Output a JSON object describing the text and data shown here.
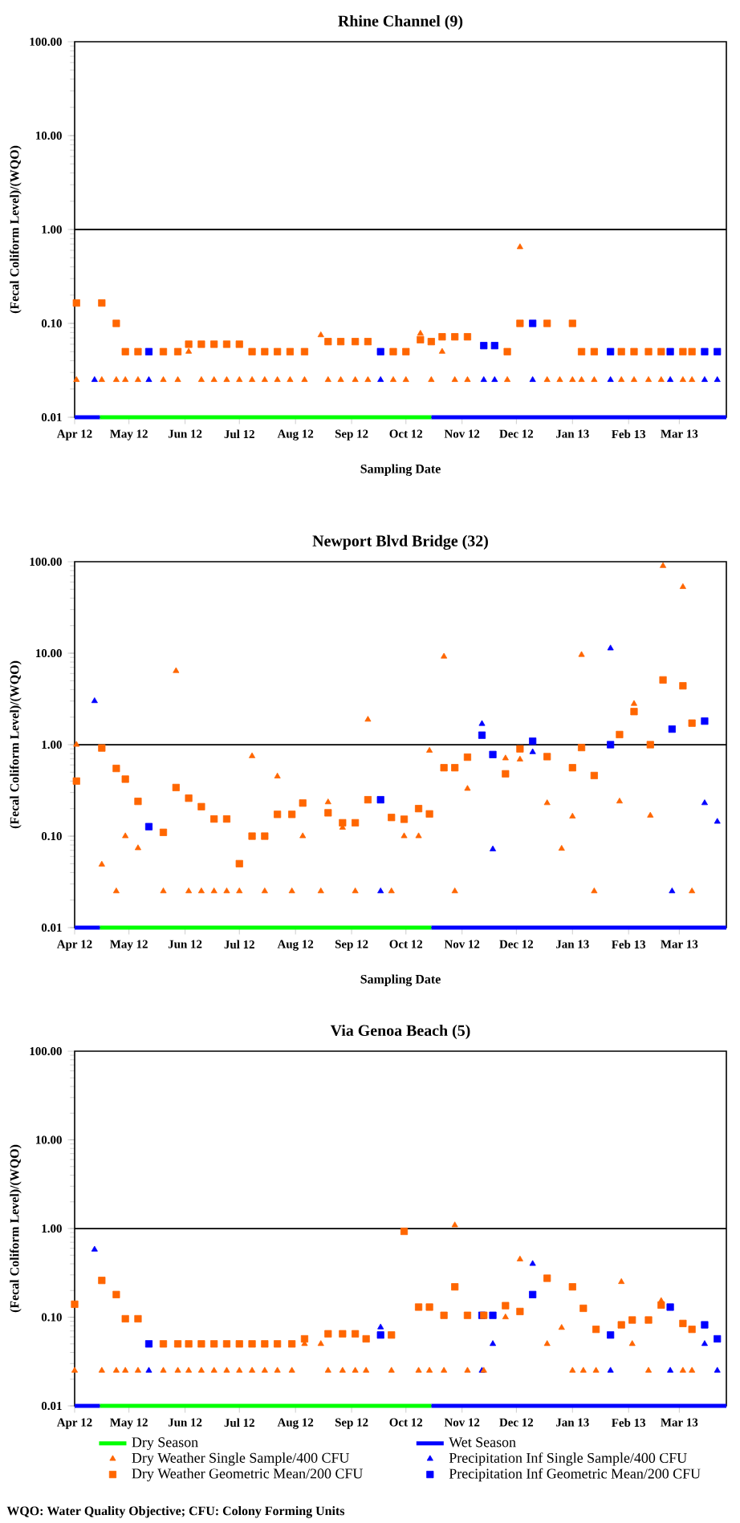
{
  "chart_data": [
    {
      "type": "scatter",
      "title": "Rhine Channel (9)",
      "xlabel": "Sampling Date",
      "ylabel": "(Fecal Coliform Level)/(WQO)",
      "log": "y",
      "xlim": [
        "2012-04-01",
        "2013-03-27"
      ],
      "ylim": [
        0.01,
        100
      ],
      "xticks": [
        {
          "value": "2012-04-01",
          "label": "Apr 12"
        },
        {
          "value": "2012-05-01",
          "label": "May 12"
        },
        {
          "value": "2012-06-01",
          "label": "Jun 12"
        },
        {
          "value": "2012-07-01",
          "label": "Jul 12"
        },
        {
          "value": "2012-08-01",
          "label": "Aug 12"
        },
        {
          "value": "2012-09-01",
          "label": "Sep 12"
        },
        {
          "value": "2012-10-01",
          "label": "Oct 12"
        },
        {
          "value": "2012-11-01",
          "label": "Nov 12"
        },
        {
          "value": "2012-12-01",
          "label": "Dec 12"
        },
        {
          "value": "2013-01-01",
          "label": "Jan 13"
        },
        {
          "value": "2013-02-01",
          "label": "Feb 13"
        },
        {
          "value": "2013-03-01",
          "label": "Mar 13"
        }
      ],
      "yticks": [
        {
          "value": 0.01,
          "label": "0.01"
        },
        {
          "value": 0.1,
          "label": "0.10"
        },
        {
          "value": 1,
          "label": "1.00"
        },
        {
          "value": 10,
          "label": "10.00"
        },
        {
          "value": 100,
          "label": "100.00"
        }
      ],
      "ref_lines": [
        {
          "axis": "y",
          "value": 1,
          "color": "#000000"
        }
      ],
      "series": [
        {
          "type": "line",
          "marker": "none",
          "color": "#00ff00",
          "x": [
            "2012-04-15",
            "2012-10-15"
          ],
          "values": [
            0.01,
            0.01
          ]
        },
        {
          "type": "line",
          "marker": "none",
          "color": "#0000ff",
          "x": [
            "2012-04-01",
            "2012-04-15"
          ],
          "values": [
            0.01,
            0.01
          ]
        },
        {
          "type": "line",
          "marker": "none",
          "color": "#0000ff",
          "x": [
            "2012-10-15",
            "2013-03-27"
          ],
          "values": [
            0.01,
            0.01
          ]
        },
        {
          "color": "#ff6600",
          "marker": "triangle",
          "x": [
            "2012-04-02",
            "2012-04-16",
            "2012-04-24",
            "2012-04-29",
            "2012-05-06",
            "2012-05-20",
            "2012-05-28",
            "2012-06-03",
            "2012-06-10",
            "2012-06-17",
            "2012-06-24",
            "2012-07-01",
            "2012-07-08",
            "2012-07-15",
            "2012-07-22",
            "2012-07-29",
            "2012-08-06",
            "2012-08-15",
            "2012-08-19",
            "2012-08-26",
            "2012-09-03",
            "2012-09-10",
            "2012-09-24",
            "2012-10-01",
            "2012-10-09",
            "2012-10-15",
            "2012-10-21",
            "2012-10-28",
            "2012-11-04",
            "2012-11-26",
            "2012-12-03",
            "2012-12-18",
            "2012-12-25",
            "2013-01-01",
            "2013-01-06",
            "2013-01-13",
            "2013-01-28",
            "2013-02-04",
            "2013-02-12",
            "2013-02-19",
            "2013-03-03",
            "2013-03-08"
          ],
          "values": [
            0.025,
            0.025,
            0.025,
            0.025,
            0.025,
            0.025,
            0.025,
            0.05,
            0.025,
            0.025,
            0.025,
            0.025,
            0.025,
            0.025,
            0.025,
            0.025,
            0.025,
            0.075,
            0.025,
            0.025,
            0.025,
            0.025,
            0.025,
            0.025,
            0.078,
            0.025,
            0.05,
            0.025,
            0.025,
            0.025,
            0.65,
            0.025,
            0.025,
            0.025,
            0.025,
            0.025,
            0.025,
            0.025,
            0.025,
            0.025,
            0.025,
            0.025
          ]
        },
        {
          "color": "#0000ff",
          "marker": "triangle",
          "x": [
            "2012-04-12",
            "2012-05-12",
            "2012-09-17",
            "2012-11-13",
            "2012-11-19",
            "2012-12-10",
            "2013-01-22",
            "2013-02-24",
            "2013-03-15",
            "2013-03-22"
          ],
          "values": [
            0.025,
            0.025,
            0.025,
            0.025,
            0.025,
            0.025,
            0.025,
            0.025,
            0.025,
            0.025
          ]
        },
        {
          "color": "#ff6600",
          "marker": "square",
          "x": [
            "2012-04-02",
            "2012-04-16",
            "2012-04-24",
            "2012-04-29",
            "2012-05-06",
            "2012-05-20",
            "2012-05-28",
            "2012-06-03",
            "2012-06-10",
            "2012-06-17",
            "2012-06-24",
            "2012-07-01",
            "2012-07-08",
            "2012-07-15",
            "2012-07-22",
            "2012-07-29",
            "2012-08-06",
            "2012-08-19",
            "2012-08-26",
            "2012-09-03",
            "2012-09-10",
            "2012-09-24",
            "2012-10-01",
            "2012-10-09",
            "2012-10-15",
            "2012-10-21",
            "2012-10-28",
            "2012-11-04",
            "2012-11-26",
            "2012-12-03",
            "2012-12-18",
            "2013-01-01",
            "2013-01-06",
            "2013-01-13",
            "2013-01-28",
            "2013-02-04",
            "2013-02-12",
            "2013-02-19",
            "2013-03-03",
            "2013-03-08"
          ],
          "values": [
            0.165,
            0.165,
            0.1,
            0.05,
            0.05,
            0.05,
            0.05,
            0.06,
            0.06,
            0.06,
            0.06,
            0.06,
            0.05,
            0.05,
            0.05,
            0.05,
            0.05,
            0.064,
            0.064,
            0.064,
            0.064,
            0.05,
            0.05,
            0.067,
            0.064,
            0.072,
            0.072,
            0.072,
            0.05,
            0.1,
            0.1,
            0.1,
            0.05,
            0.05,
            0.05,
            0.05,
            0.05,
            0.05,
            0.05,
            0.05
          ]
        },
        {
          "color": "#0000ff",
          "marker": "square",
          "x": [
            "2012-05-12",
            "2012-09-17",
            "2012-11-13",
            "2012-11-19",
            "2012-12-10",
            "2013-01-22",
            "2013-02-24",
            "2013-03-15",
            "2013-03-22"
          ],
          "values": [
            0.05,
            0.05,
            0.058,
            0.058,
            0.1,
            0.05,
            0.05,
            0.05,
            0.05
          ]
        }
      ]
    },
    {
      "type": "scatter",
      "title": "Newport Blvd Bridge (32)",
      "xlabel": "Sampling Date",
      "ylabel": "(Fecal Coliform Level)/(WQO)",
      "log": "y",
      "xlim": [
        "2012-04-01",
        "2013-03-27"
      ],
      "ylim": [
        0.01,
        100
      ],
      "xticks": [
        {
          "value": "2012-04-01",
          "label": "Apr 12"
        },
        {
          "value": "2012-05-01",
          "label": "May 12"
        },
        {
          "value": "2012-06-01",
          "label": "Jun 12"
        },
        {
          "value": "2012-07-01",
          "label": "Jul 12"
        },
        {
          "value": "2012-08-01",
          "label": "Aug 12"
        },
        {
          "value": "2012-09-01",
          "label": "Sep 12"
        },
        {
          "value": "2012-10-01",
          "label": "Oct 12"
        },
        {
          "value": "2012-11-01",
          "label": "Nov 12"
        },
        {
          "value": "2012-12-01",
          "label": "Dec 12"
        },
        {
          "value": "2013-01-01",
          "label": "Jan 13"
        },
        {
          "value": "2013-02-01",
          "label": "Feb 13"
        },
        {
          "value": "2013-03-01",
          "label": "Mar 13"
        }
      ],
      "yticks": [
        {
          "value": 0.01,
          "label": "0.01"
        },
        {
          "value": 0.1,
          "label": "0.10"
        },
        {
          "value": 1,
          "label": "1.00"
        },
        {
          "value": 10,
          "label": "10.00"
        },
        {
          "value": 100,
          "label": "100.00"
        }
      ],
      "ref_lines": [
        {
          "axis": "y",
          "value": 1,
          "color": "#000000"
        }
      ],
      "series": [
        {
          "type": "line",
          "marker": "none",
          "color": "#00ff00",
          "x": [
            "2012-04-15",
            "2012-10-15"
          ],
          "values": [
            0.01,
            0.01
          ]
        },
        {
          "type": "line",
          "marker": "none",
          "color": "#0000ff",
          "x": [
            "2012-04-01",
            "2012-04-15"
          ],
          "values": [
            0.01,
            0.01
          ]
        },
        {
          "type": "line",
          "marker": "none",
          "color": "#0000ff",
          "x": [
            "2012-10-15",
            "2013-03-27"
          ],
          "values": [
            0.01,
            0.01
          ]
        },
        {
          "color": "#ff6600",
          "marker": "triangle",
          "x": [
            "2012-04-02",
            "2012-04-16",
            "2012-04-24",
            "2012-04-29",
            "2012-05-06",
            "2012-05-20",
            "2012-05-27",
            "2012-06-03",
            "2012-06-10",
            "2012-06-17",
            "2012-06-24",
            "2012-07-01",
            "2012-07-08",
            "2012-07-15",
            "2012-07-22",
            "2012-07-30",
            "2012-08-05",
            "2012-08-15",
            "2012-08-19",
            "2012-08-27",
            "2012-09-03",
            "2012-09-10",
            "2012-09-23",
            "2012-09-30",
            "2012-10-08",
            "2012-10-14",
            "2012-10-22",
            "2012-10-28",
            "2012-11-04",
            "2012-11-25",
            "2012-12-03",
            "2012-12-18",
            "2012-12-26",
            "2013-01-01",
            "2013-01-06",
            "2013-01-13",
            "2013-01-27",
            "2013-02-04",
            "2013-02-13",
            "2013-02-20",
            "2013-03-03",
            "2013-03-08"
          ],
          "values": [
            1.0,
            0.049,
            0.025,
            0.1,
            0.074,
            0.025,
            6.4,
            0.025,
            0.025,
            0.025,
            0.025,
            0.025,
            0.75,
            0.025,
            0.45,
            0.025,
            0.1,
            0.025,
            0.235,
            0.124,
            0.025,
            1.88,
            0.025,
            0.1,
            0.1,
            0.86,
            9.2,
            0.025,
            0.33,
            0.71,
            0.69,
            0.23,
            0.073,
            0.164,
            9.6,
            0.025,
            0.24,
            2.8,
            0.168,
            90,
            53,
            0.025
          ]
        },
        {
          "color": "#0000ff",
          "marker": "triangle",
          "x": [
            "2012-04-12",
            "2012-05-12",
            "2012-09-17",
            "2012-11-12",
            "2012-11-18",
            "2012-12-10",
            "2013-01-22",
            "2013-02-25",
            "2013-03-15",
            "2013-03-22"
          ],
          "values": [
            3.0,
            0.127,
            0.025,
            1.69,
            0.072,
            0.83,
            11.3,
            0.025,
            0.23,
            0.144
          ]
        },
        {
          "color": "#ff6600",
          "marker": "square",
          "x": [
            "2012-04-02",
            "2012-04-16",
            "2012-04-24",
            "2012-04-29",
            "2012-05-06",
            "2012-05-20",
            "2012-05-27",
            "2012-06-03",
            "2012-06-10",
            "2012-06-17",
            "2012-06-24",
            "2012-07-01",
            "2012-07-08",
            "2012-07-15",
            "2012-07-22",
            "2012-07-30",
            "2012-08-05",
            "2012-08-19",
            "2012-08-27",
            "2012-09-03",
            "2012-09-10",
            "2012-09-23",
            "2012-09-30",
            "2012-10-08",
            "2012-10-14",
            "2012-10-22",
            "2012-10-28",
            "2012-11-04",
            "2012-11-25",
            "2012-12-03",
            "2012-12-18",
            "2013-01-01",
            "2013-01-06",
            "2013-01-13",
            "2013-01-27",
            "2013-02-04",
            "2013-02-13",
            "2013-02-20",
            "2013-03-03",
            "2013-03-08"
          ],
          "values": [
            0.4,
            0.92,
            0.55,
            0.42,
            0.24,
            0.11,
            0.34,
            0.26,
            0.21,
            0.154,
            0.154,
            0.05,
            0.1,
            0.1,
            0.173,
            0.173,
            0.23,
            0.18,
            0.14,
            0.14,
            0.25,
            0.16,
            0.153,
            0.2,
            0.175,
            0.56,
            0.56,
            0.73,
            0.48,
            0.9,
            0.74,
            0.56,
            0.93,
            0.46,
            1.29,
            2.3,
            1.0,
            5.1,
            4.4,
            1.72
          ]
        },
        {
          "color": "#0000ff",
          "marker": "square",
          "x": [
            "2012-05-12",
            "2012-09-17",
            "2012-11-12",
            "2012-11-18",
            "2012-12-10",
            "2013-01-22",
            "2013-02-25",
            "2013-03-15"
          ],
          "values": [
            0.127,
            0.25,
            1.27,
            0.78,
            1.09,
            1.0,
            1.48,
            1.81
          ]
        }
      ]
    },
    {
      "type": "scatter",
      "title": "Via Genoa Beach (5)",
      "ylabel": "(Fecal Coliform Level)/(WQO)",
      "log": "y",
      "legend": "bottom",
      "xlim": [
        "2012-04-01",
        "2013-03-27"
      ],
      "ylim": [
        0.01,
        100
      ],
      "xticks": [
        {
          "value": "2012-04-01",
          "label": "Apr 12"
        },
        {
          "value": "2012-05-01",
          "label": "May 12"
        },
        {
          "value": "2012-06-01",
          "label": "Jun 12"
        },
        {
          "value": "2012-07-01",
          "label": "Jul 12"
        },
        {
          "value": "2012-08-01",
          "label": "Aug 12"
        },
        {
          "value": "2012-09-01",
          "label": "Sep 12"
        },
        {
          "value": "2012-10-01",
          "label": "Oct 12"
        },
        {
          "value": "2012-11-01",
          "label": "Nov 12"
        },
        {
          "value": "2012-12-01",
          "label": "Dec 12"
        },
        {
          "value": "2013-01-01",
          "label": "Jan 13"
        },
        {
          "value": "2013-02-01",
          "label": "Feb 13"
        },
        {
          "value": "2013-03-01",
          "label": "Mar 13"
        }
      ],
      "yticks": [
        {
          "value": 0.01,
          "label": "0.01"
        },
        {
          "value": 0.1,
          "label": "0.10"
        },
        {
          "value": 1,
          "label": "1.00"
        },
        {
          "value": 10,
          "label": "10.00"
        },
        {
          "value": 100,
          "label": "100.00"
        }
      ],
      "ref_lines": [
        {
          "axis": "y",
          "value": 1,
          "color": "#000000"
        }
      ],
      "series": [
        {
          "name": "Dry Season",
          "type": "line",
          "marker": "none",
          "color": "#00ff00",
          "x": [
            "2012-04-15",
            "2012-10-15"
          ],
          "values": [
            0.01,
            0.01
          ]
        },
        {
          "name": "Wet Season",
          "type": "line",
          "marker": "none",
          "color": "#0000ff",
          "x": [
            "2012-04-01",
            "2012-04-15"
          ],
          "values": [
            0.01,
            0.01
          ]
        },
        {
          "type": "line",
          "marker": "none",
          "color": "#0000ff",
          "x": [
            "2012-10-15",
            "2013-03-27"
          ],
          "values": [
            0.01,
            0.01
          ]
        },
        {
          "name": "Dry Weather Single Sample/400 CFU",
          "color": "#ff6600",
          "marker": "triangle",
          "x": [
            "2012-04-01",
            "2012-04-16",
            "2012-04-24",
            "2012-04-29",
            "2012-05-06",
            "2012-05-20",
            "2012-05-28",
            "2012-06-03",
            "2012-06-10",
            "2012-06-17",
            "2012-06-24",
            "2012-07-01",
            "2012-07-08",
            "2012-07-15",
            "2012-07-22",
            "2012-07-30",
            "2012-08-06",
            "2012-08-15",
            "2012-08-19",
            "2012-08-27",
            "2012-09-03",
            "2012-09-09",
            "2012-09-23",
            "2012-10-08",
            "2012-10-14",
            "2012-10-22",
            "2012-10-28",
            "2012-11-04",
            "2012-11-13",
            "2012-11-25",
            "2012-12-03",
            "2012-12-18",
            "2012-12-26",
            "2013-01-01",
            "2013-01-07",
            "2013-01-14",
            "2013-01-28",
            "2013-02-03",
            "2013-02-12",
            "2013-02-19",
            "2013-03-03",
            "2013-03-08"
          ],
          "values": [
            0.025,
            0.025,
            0.025,
            0.025,
            0.025,
            0.025,
            0.025,
            0.025,
            0.025,
            0.025,
            0.025,
            0.025,
            0.025,
            0.025,
            0.025,
            0.025,
            0.05,
            0.05,
            0.025,
            0.025,
            0.025,
            0.025,
            0.025,
            0.025,
            0.025,
            0.025,
            1.09,
            0.025,
            0.025,
            0.1,
            0.45,
            0.05,
            0.076,
            0.025,
            0.025,
            0.025,
            0.25,
            0.05,
            0.025,
            0.153,
            0.025,
            0.025
          ]
        },
        {
          "name": "Precipitation Inf Single Sample/400 CFU",
          "color": "#0000ff",
          "marker": "triangle",
          "x": [
            "2012-04-12",
            "2012-05-12",
            "2012-09-17",
            "2012-11-12",
            "2012-11-18",
            "2012-12-10",
            "2013-01-22",
            "2013-02-24",
            "2013-03-15",
            "2013-03-22"
          ],
          "values": [
            0.58,
            0.025,
            0.077,
            0.025,
            0.05,
            0.4,
            0.025,
            0.025,
            0.05,
            0.025
          ]
        },
        {
          "name": "Dry Weather Geometric Mean/200 CFU",
          "color": "#ff6600",
          "marker": "square",
          "x": [
            "2012-04-01",
            "2012-04-16",
            "2012-04-24",
            "2012-04-29",
            "2012-05-06",
            "2012-05-20",
            "2012-05-28",
            "2012-06-03",
            "2012-06-10",
            "2012-06-17",
            "2012-06-24",
            "2012-07-01",
            "2012-07-08",
            "2012-07-15",
            "2012-07-22",
            "2012-07-30",
            "2012-08-06",
            "2012-08-19",
            "2012-08-27",
            "2012-09-03",
            "2012-09-09",
            "2012-09-23",
            "2012-09-30",
            "2012-10-08",
            "2012-10-14",
            "2012-10-22",
            "2012-10-28",
            "2012-11-04",
            "2012-11-13",
            "2012-11-25",
            "2012-12-03",
            "2012-12-18",
            "2013-01-01",
            "2013-01-07",
            "2013-01-14",
            "2013-01-28",
            "2013-02-03",
            "2013-02-12",
            "2013-02-19",
            "2013-03-03",
            "2013-03-08"
          ],
          "values": [
            0.14,
            0.26,
            0.18,
            0.096,
            0.096,
            0.05,
            0.05,
            0.05,
            0.05,
            0.05,
            0.05,
            0.05,
            0.05,
            0.05,
            0.05,
            0.05,
            0.057,
            0.065,
            0.065,
            0.065,
            0.057,
            0.063,
            0.93,
            0.13,
            0.13,
            0.105,
            0.22,
            0.105,
            0.105,
            0.135,
            0.116,
            0.275,
            0.22,
            0.126,
            0.073,
            0.082,
            0.093,
            0.093,
            0.137,
            0.085,
            0.073
          ]
        },
        {
          "name": "Precipitation Inf Geometric Mean/200 CFU",
          "color": "#0000ff",
          "marker": "square",
          "x": [
            "2012-05-12",
            "2012-09-17",
            "2012-11-12",
            "2012-11-18",
            "2012-12-10",
            "2013-01-22",
            "2013-02-24",
            "2013-03-15",
            "2013-03-22"
          ],
          "values": [
            0.05,
            0.063,
            0.105,
            0.105,
            0.18,
            0.063,
            0.13,
            0.082,
            0.057
          ]
        }
      ],
      "annotations": [
        "**WQO: Water Quality Objective; CFU: Colony Forming Units**"
      ]
    }
  ]
}
